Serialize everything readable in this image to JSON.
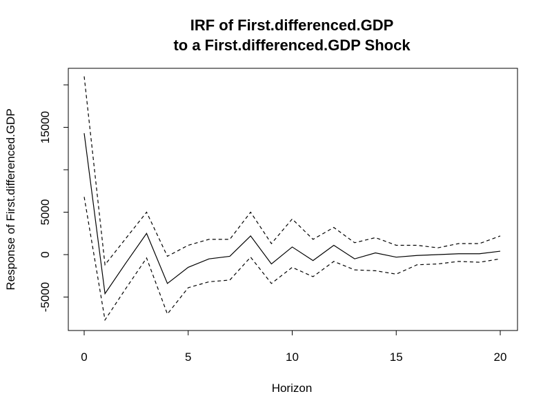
{
  "chart_data": {
    "type": "line",
    "title_line1": "IRF of First.differenced.GDP",
    "title_line2": "to a First.differenced.GDP Shock",
    "xlabel": "Horizon",
    "ylabel": "Response of First.differenced.GDP",
    "xlim": [
      0,
      20
    ],
    "ylim": [
      -8500,
      22000
    ],
    "x_ticks": [
      0,
      5,
      10,
      15,
      20
    ],
    "y_ticks": [
      -5000,
      0,
      5000,
      15000
    ],
    "y_tick_marks": [
      -5000,
      0,
      5000,
      10000,
      15000,
      20000
    ],
    "grid": false,
    "x": [
      0,
      1,
      2,
      3,
      4,
      5,
      6,
      7,
      8,
      9,
      10,
      11,
      12,
      13,
      14,
      15,
      16,
      17,
      18,
      19,
      20
    ],
    "series": [
      {
        "style": "solid",
        "values": [
          14300,
          -4600,
          -1000,
          2500,
          -3400,
          -1500,
          -500,
          -200,
          2200,
          -1100,
          900,
          -700,
          1100,
          -500,
          200,
          -300,
          -100,
          0,
          100,
          100,
          400
        ]
      },
      {
        "style": "dashed",
        "values": [
          21000,
          -1200,
          1900,
          5000,
          -200,
          1100,
          1800,
          1800,
          5000,
          1300,
          4200,
          1800,
          3200,
          1400,
          2000,
          1100,
          1100,
          800,
          1300,
          1300,
          2200
        ]
      },
      {
        "style": "dashed",
        "values": [
          6800,
          -7700,
          -4000,
          -400,
          -7000,
          -3900,
          -3200,
          -3000,
          -300,
          -3400,
          -1500,
          -2600,
          -800,
          -1800,
          -1900,
          -2300,
          -1200,
          -1100,
          -800,
          -900,
          -500
        ]
      }
    ]
  }
}
